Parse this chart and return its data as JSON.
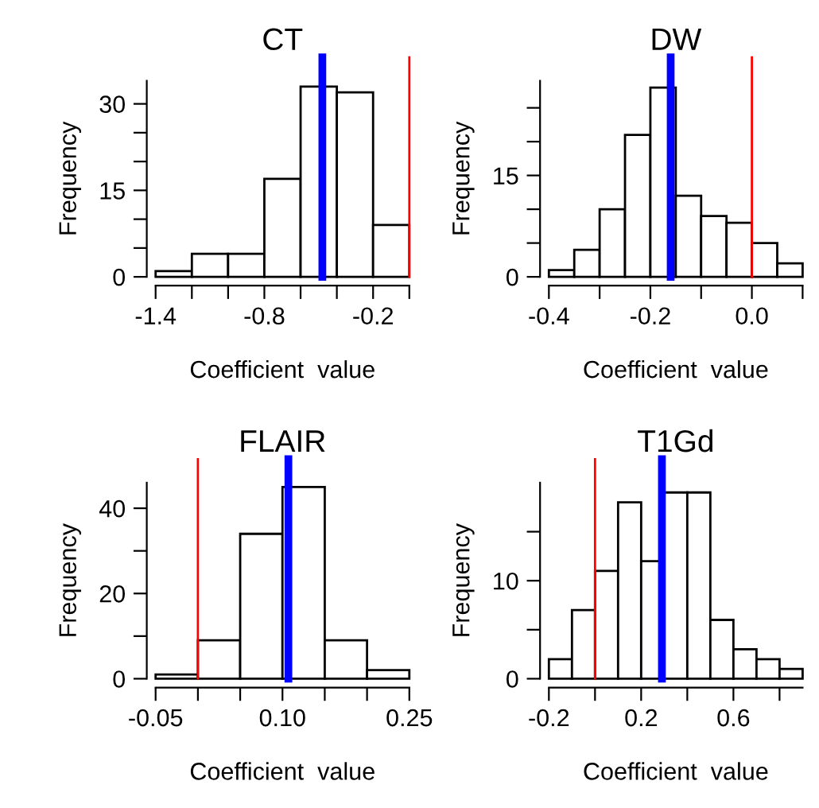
{
  "chart_data": [
    {
      "type": "histogram",
      "title": "CT",
      "xlabel": "Coefficient  value",
      "ylabel": "Frequency",
      "color": "#ffffff",
      "bins": [
        -1.4,
        -1.2,
        -1.0,
        -0.8,
        -0.6,
        -0.4,
        -0.2,
        0.0
      ],
      "values": [
        1,
        4,
        4,
        17,
        33,
        32,
        9
      ],
      "xlim": [
        -1.4,
        0.0
      ],
      "ylim": [
        0,
        34
      ],
      "xticks": [
        -1.4,
        {
          "value": -1.2,
          "label": null
        },
        {
          "value": -1.0,
          "label": null
        },
        -0.8,
        {
          "value": -0.6,
          "label": null
        },
        {
          "value": -0.4,
          "label": null
        },
        -0.2,
        {
          "value": 0.0,
          "label": null
        }
      ],
      "yticks": [
        0,
        {
          "value": 5,
          "label": null
        },
        {
          "value": 10,
          "label": null
        },
        15,
        {
          "value": 20,
          "label": null
        },
        {
          "value": 25,
          "label": null
        },
        30
      ],
      "ref_lines": [
        {
          "axis": "x",
          "value": 0.0,
          "color": "#ff0000"
        },
        {
          "axis": "x",
          "value": -0.48,
          "color": "#0000ff"
        }
      ],
      "grid": false
    },
    {
      "type": "histogram",
      "title": "DW",
      "xlabel": "Coefficient  value",
      "ylabel": "Frequency",
      "color": "#ffffff",
      "bins": [
        -0.4,
        -0.35,
        -0.3,
        -0.25,
        -0.2,
        -0.15,
        -0.1,
        -0.05,
        0.0,
        0.05,
        0.1
      ],
      "values": [
        1,
        4,
        10,
        21,
        28,
        12,
        9,
        8,
        5,
        2
      ],
      "xlim": [
        -0.4,
        0.1
      ],
      "ylim": [
        0,
        29
      ],
      "xticks": [
        -0.4,
        {
          "value": -0.3,
          "label": null
        },
        -0.2,
        {
          "value": -0.1,
          "label": null
        },
        {
          "value": 0.0,
          "label": "0.0"
        },
        {
          "value": 0.1,
          "label": null
        }
      ],
      "yticks": [
        0,
        {
          "value": 5,
          "label": null
        },
        {
          "value": 10,
          "label": null
        },
        15,
        {
          "value": 20,
          "label": null
        },
        {
          "value": 25,
          "label": null
        }
      ],
      "ref_lines": [
        {
          "axis": "x",
          "value": 0.0,
          "color": "#ff0000"
        },
        {
          "axis": "x",
          "value": -0.16,
          "color": "#0000ff"
        }
      ],
      "grid": false
    },
    {
      "type": "histogram",
      "title": "FLAIR",
      "xlabel": "Coefficient  value",
      "ylabel": "Frequency",
      "color": "#ffffff",
      "bins": [
        -0.05,
        0.0,
        0.05,
        0.1,
        0.15,
        0.2,
        0.25
      ],
      "values": [
        1,
        9,
        34,
        45,
        9,
        2
      ],
      "xlim": [
        -0.05,
        0.25
      ],
      "ylim": [
        0,
        46
      ],
      "xticks": [
        -0.05,
        {
          "value": 0.0,
          "label": null
        },
        {
          "value": 0.05,
          "label": null
        },
        {
          "value": 0.1,
          "label": "0.10"
        },
        {
          "value": 0.15,
          "label": null
        },
        {
          "value": 0.2,
          "label": null
        },
        0.25
      ],
      "yticks": [
        0,
        {
          "value": 10,
          "label": null
        },
        20,
        {
          "value": 30,
          "label": null
        },
        40
      ],
      "ref_lines": [
        {
          "axis": "x",
          "value": 0.0,
          "color": "#ff0000"
        },
        {
          "axis": "x",
          "value": 0.107,
          "color": "#0000ff"
        }
      ],
      "grid": false
    },
    {
      "type": "histogram",
      "title": "T1Gd",
      "xlabel": "Coefficient  value",
      "ylabel": "Frequency",
      "color": "#ffffff",
      "bins": [
        -0.2,
        -0.1,
        0.0,
        0.1,
        0.2,
        0.3,
        0.4,
        0.5,
        0.6,
        0.7,
        0.8,
        0.9
      ],
      "values": [
        2,
        7,
        11,
        18,
        12,
        19,
        19,
        6,
        3,
        2,
        1
      ],
      "xlim": [
        -0.2,
        0.9
      ],
      "ylim": [
        0,
        20
      ],
      "xticks": [
        -0.2,
        {
          "value": 0.0,
          "label": null
        },
        0.2,
        {
          "value": 0.4,
          "label": null
        },
        0.6,
        {
          "value": 0.8,
          "label": null
        }
      ],
      "yticks": [
        0,
        {
          "value": 5,
          "label": null
        },
        10,
        {
          "value": 15,
          "label": null
        }
      ],
      "ref_lines": [
        {
          "axis": "x",
          "value": 0.0,
          "color": "#ff0000"
        },
        {
          "axis": "x",
          "value": 0.29,
          "color": "#0000ff"
        }
      ],
      "grid": false
    }
  ]
}
